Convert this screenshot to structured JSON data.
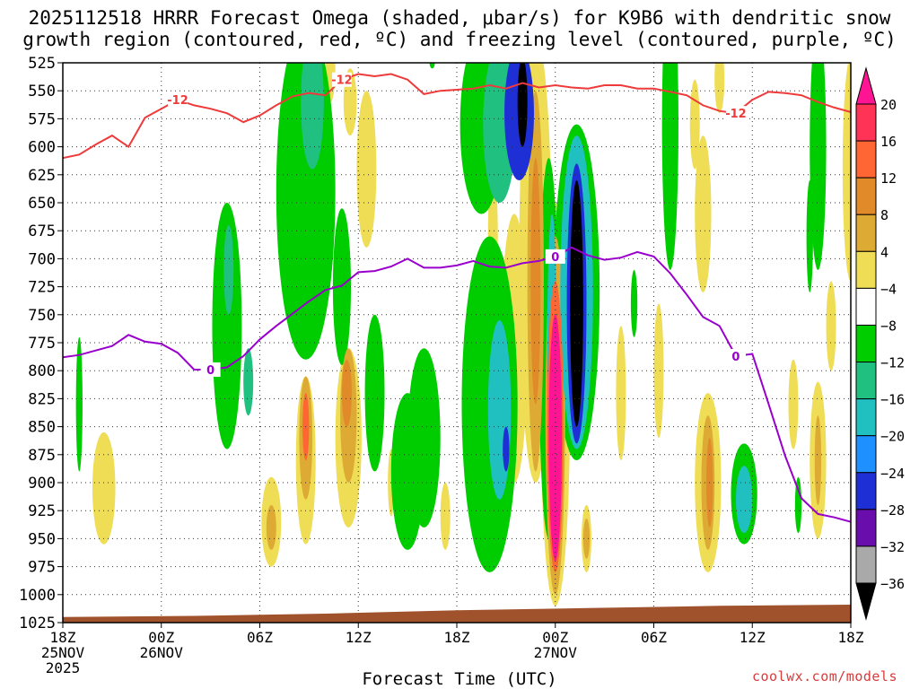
{
  "title": {
    "line1": "2025112518 HRRR Forecast Omega (shaded, μbar/s) for K9B6 with dendritic snow",
    "line2": "growth region (contoured, red, ºC) and freezing level (contoured, purple, ºC)"
  },
  "credit": "coolwx.com/models",
  "colors": {
    "ground": "#a0522d",
    "dgz_line": "#ee3a3a",
    "freezing_line": "#9900cc",
    "grid": "#999999",
    "colorbar": [
      "#000000",
      "#a9a9a9",
      "#9400d3",
      "#6a0dad",
      "#1f2fd6",
      "#1e90ff",
      "#20c0c0",
      "#20c080",
      "#00cd00",
      "#ffffff",
      "#eedd55",
      "#ddaa33",
      "#e08a2a",
      "#ff6633",
      "#ff3355"
    ],
    "pink_peak": "#ff1493"
  },
  "chart_data": {
    "type": "heatmap",
    "title": "2025112518 HRRR Forecast Omega (shaded, μbar/s) for K9B6 with dendritic snow growth region (contoured, red, ºC) and freezing level (contoured, purple, ºC)",
    "xlabel": "Forecast Time (UTC)",
    "ylabel": "",
    "x_ticks": [
      {
        "h": 0,
        "label": "18Z",
        "sub": "25NOV",
        "sub2": "2025"
      },
      {
        "h": 6,
        "label": "00Z",
        "sub": "26NOV"
      },
      {
        "h": 12,
        "label": "06Z"
      },
      {
        "h": 18,
        "label": "12Z"
      },
      {
        "h": 24,
        "label": "18Z"
      },
      {
        "h": 30,
        "label": "00Z",
        "sub": "27NOV"
      },
      {
        "h": 36,
        "label": "06Z"
      },
      {
        "h": 42,
        "label": "12Z"
      },
      {
        "h": 48,
        "label": "18Z"
      }
    ],
    "x_range": [
      0,
      48
    ],
    "y_levels": [
      525,
      550,
      575,
      600,
      625,
      650,
      675,
      700,
      725,
      750,
      775,
      800,
      825,
      850,
      875,
      900,
      925,
      950,
      975,
      1000,
      1025
    ],
    "y_range": [
      525,
      1025
    ],
    "grid": true,
    "colorbar": {
      "levels": [
        -36,
        -32,
        -28,
        -24,
        -20,
        -16,
        -12,
        -8,
        -4,
        4,
        8,
        12,
        16,
        20
      ],
      "labels": [
        "20",
        "16",
        "12",
        "8",
        "4",
        "−4",
        "−8",
        "−12",
        "−16",
        "−20",
        "−24",
        "−28",
        "−32",
        "−36"
      ]
    },
    "contour_labels": {
      "dgz": "-12",
      "freezing": "0"
    },
    "dgz_minus12": {
      "h": [
        0,
        1,
        2,
        3,
        4,
        5,
        6,
        7,
        8,
        9,
        10,
        11,
        12,
        13,
        14,
        15,
        16,
        17,
        18,
        19,
        20,
        21,
        22,
        23,
        24,
        25,
        26,
        27,
        28,
        29,
        30,
        31,
        32,
        33,
        34,
        35,
        36,
        37,
        38,
        39,
        40,
        41,
        42,
        43,
        44,
        45,
        46,
        47,
        48
      ],
      "hPa": [
        610,
        607,
        598,
        590,
        600,
        574,
        566,
        558,
        563,
        566,
        570,
        578,
        572,
        563,
        555,
        552,
        554,
        540,
        535,
        537,
        535,
        540,
        553,
        550,
        549,
        548,
        545,
        548,
        543,
        547,
        545,
        547,
        548,
        545,
        545,
        548,
        548,
        551,
        554,
        563,
        568,
        570,
        558,
        551,
        552,
        554,
        560,
        565,
        569
      ]
    },
    "freezing_0": {
      "h": [
        0,
        1,
        2,
        3,
        4,
        5,
        6,
        7,
        8,
        9,
        10,
        11,
        12,
        13,
        14,
        15,
        16,
        17,
        18,
        19,
        20,
        21,
        22,
        23,
        24,
        25,
        26,
        27,
        28,
        29,
        30,
        31,
        32,
        33,
        34,
        35,
        36,
        37,
        38,
        39,
        40,
        41,
        42,
        43,
        44,
        45,
        46,
        47,
        48
      ],
      "hPa": [
        788,
        786,
        782,
        778,
        768,
        774,
        776,
        784,
        799,
        799,
        797,
        787,
        772,
        760,
        749,
        738,
        728,
        724,
        712,
        711,
        707,
        700,
        708,
        708,
        706,
        702,
        707,
        708,
        704,
        702,
        698,
        690,
        697,
        701,
        699,
        694,
        698,
        713,
        732,
        752,
        760,
        787,
        785,
        830,
        876,
        914,
        928,
        931,
        935
      ]
    },
    "ground_hPa": [
      1020,
      1019,
      1017,
      1014,
      1012,
      1010,
      1009
    ],
    "omega_features": [
      {
        "h": 17.0,
        "p": 725,
        "rx": 0.55,
        "ry": 70,
        "val": -7
      },
      {
        "h": 14.8,
        "p": 640,
        "rx": 1.8,
        "ry": 150,
        "val": -7
      },
      {
        "h": 15.2,
        "p": 560,
        "rx": 0.7,
        "ry": 60,
        "val": -11
      },
      {
        "h": 10.0,
        "p": 760,
        "rx": 0.9,
        "ry": 110,
        "val": -6
      },
      {
        "h": 10.1,
        "p": 710,
        "rx": 0.3,
        "ry": 40,
        "val": -11
      },
      {
        "h": 11.3,
        "p": 810,
        "rx": 0.3,
        "ry": 30,
        "val": -10
      },
      {
        "h": 1.0,
        "p": 830,
        "rx": 0.2,
        "ry": 60,
        "val": -6
      },
      {
        "h": 19.0,
        "p": 820,
        "rx": 0.6,
        "ry": 70,
        "val": -6
      },
      {
        "h": 21.0,
        "p": 890,
        "rx": 1.0,
        "ry": 70,
        "val": -6
      },
      {
        "h": 22.0,
        "p": 860,
        "rx": 1.0,
        "ry": 80,
        "val": -6
      },
      {
        "h": 26.0,
        "p": 830,
        "rx": 1.7,
        "ry": 150,
        "val": -6
      },
      {
        "h": 26.6,
        "p": 835,
        "rx": 0.7,
        "ry": 80,
        "val": -12
      },
      {
        "h": 27.0,
        "p": 870,
        "rx": 0.2,
        "ry": 20,
        "val": -20
      },
      {
        "h": 25.5,
        "p": 580,
        "rx": 1.3,
        "ry": 80,
        "val": -6
      },
      {
        "h": 26.6,
        "p": 580,
        "rx": 1.0,
        "ry": 70,
        "val": -10
      },
      {
        "h": 27.8,
        "p": 570,
        "rx": 0.9,
        "ry": 60,
        "val": -22
      },
      {
        "h": 28.0,
        "p": 560,
        "rx": 0.3,
        "ry": 40,
        "val": -36
      },
      {
        "h": 29.6,
        "p": 780,
        "rx": 0.6,
        "ry": 170,
        "val": -6
      },
      {
        "h": 29.8,
        "p": 790,
        "rx": 0.3,
        "ry": 130,
        "val": -14
      },
      {
        "h": 31.3,
        "p": 730,
        "rx": 1.4,
        "ry": 150,
        "val": -6
      },
      {
        "h": 31.3,
        "p": 730,
        "rx": 1.0,
        "ry": 140,
        "val": -12
      },
      {
        "h": 31.3,
        "p": 740,
        "rx": 0.6,
        "ry": 125,
        "val": -20
      },
      {
        "h": 31.3,
        "p": 740,
        "rx": 0.4,
        "ry": 110,
        "val": -36
      },
      {
        "h": 34.8,
        "p": 740,
        "rx": 0.2,
        "ry": 30,
        "val": -6
      },
      {
        "h": 37.0,
        "p": 580,
        "rx": 0.5,
        "ry": 130,
        "val": -6
      },
      {
        "h": 41.5,
        "p": 910,
        "rx": 0.8,
        "ry": 45,
        "val": -6
      },
      {
        "h": 41.5,
        "p": 915,
        "rx": 0.5,
        "ry": 30,
        "val": -14
      },
      {
        "h": 46.0,
        "p": 600,
        "rx": 0.5,
        "ry": 110,
        "val": -6
      },
      {
        "h": 45.5,
        "p": 680,
        "rx": 0.2,
        "ry": 50,
        "val": -6
      },
      {
        "h": 44.8,
        "p": 920,
        "rx": 0.2,
        "ry": 25,
        "val": -6
      },
      {
        "h": 22.5,
        "p": 525,
        "rx": 0.1,
        "ry": 5,
        "val": -6
      },
      {
        "h": 2.5,
        "p": 905,
        "rx": 0.7,
        "ry": 50,
        "val": 5
      },
      {
        "h": 12.7,
        "p": 935,
        "rx": 0.6,
        "ry": 40,
        "val": 6
      },
      {
        "h": 12.7,
        "p": 940,
        "rx": 0.3,
        "ry": 20,
        "val": 9
      },
      {
        "h": 14.8,
        "p": 880,
        "rx": 0.6,
        "ry": 75,
        "val": 5
      },
      {
        "h": 14.8,
        "p": 860,
        "rx": 0.4,
        "ry": 55,
        "val": 10
      },
      {
        "h": 14.8,
        "p": 850,
        "rx": 0.2,
        "ry": 30,
        "val": 16
      },
      {
        "h": 17.4,
        "p": 860,
        "rx": 0.8,
        "ry": 80,
        "val": 5
      },
      {
        "h": 17.4,
        "p": 840,
        "rx": 0.5,
        "ry": 60,
        "val": 9
      },
      {
        "h": 17.3,
        "p": 820,
        "rx": 0.3,
        "ry": 30,
        "val": 13
      },
      {
        "h": 16.3,
        "p": 530,
        "rx": 0.3,
        "ry": 30,
        "val": 5
      },
      {
        "h": 18.5,
        "p": 620,
        "rx": 0.6,
        "ry": 70,
        "val": 5
      },
      {
        "h": 20.0,
        "p": 900,
        "rx": 0.2,
        "ry": 30,
        "val": 5
      },
      {
        "h": 23.3,
        "p": 930,
        "rx": 0.3,
        "ry": 30,
        "val": 5
      },
      {
        "h": 26.2,
        "p": 680,
        "rx": 0.3,
        "ry": 60,
        "val": 5
      },
      {
        "h": 27.5,
        "p": 780,
        "rx": 0.8,
        "ry": 120,
        "val": 5
      },
      {
        "h": 28.8,
        "p": 700,
        "rx": 1.0,
        "ry": 200,
        "val": 5
      },
      {
        "h": 28.8,
        "p": 720,
        "rx": 0.5,
        "ry": 170,
        "val": 8
      },
      {
        "h": 28.8,
        "p": 720,
        "rx": 0.3,
        "ry": 110,
        "val": 13
      },
      {
        "h": 30.0,
        "p": 830,
        "rx": 0.9,
        "ry": 180,
        "val": 5
      },
      {
        "h": 30.0,
        "p": 840,
        "rx": 0.6,
        "ry": 160,
        "val": 9
      },
      {
        "h": 30.0,
        "p": 850,
        "rx": 0.5,
        "ry": 130,
        "val": 16
      },
      {
        "h": 30.0,
        "p": 860,
        "rx": 0.4,
        "ry": 110,
        "val": 22
      },
      {
        "h": 31.9,
        "p": 950,
        "rx": 0.3,
        "ry": 30,
        "val": 5
      },
      {
        "h": 31.9,
        "p": 950,
        "rx": 0.2,
        "ry": 18,
        "val": 9
      },
      {
        "h": 34.0,
        "p": 820,
        "rx": 0.3,
        "ry": 60,
        "val": 5
      },
      {
        "h": 36.3,
        "p": 800,
        "rx": 0.3,
        "ry": 60,
        "val": 5
      },
      {
        "h": 38.5,
        "p": 580,
        "rx": 0.3,
        "ry": 40,
        "val": 5
      },
      {
        "h": 39.0,
        "p": 660,
        "rx": 0.5,
        "ry": 70,
        "val": 5
      },
      {
        "h": 39.3,
        "p": 900,
        "rx": 0.8,
        "ry": 80,
        "val": 5
      },
      {
        "h": 39.3,
        "p": 900,
        "rx": 0.4,
        "ry": 60,
        "val": 10
      },
      {
        "h": 39.4,
        "p": 900,
        "rx": 0.2,
        "ry": 40,
        "val": 13
      },
      {
        "h": 44.5,
        "p": 830,
        "rx": 0.3,
        "ry": 40,
        "val": 5
      },
      {
        "h": 46.0,
        "p": 880,
        "rx": 0.5,
        "ry": 70,
        "val": 5
      },
      {
        "h": 46.0,
        "p": 880,
        "rx": 0.2,
        "ry": 40,
        "val": 9
      },
      {
        "h": 46.8,
        "p": 760,
        "rx": 0.3,
        "ry": 40,
        "val": 5
      },
      {
        "h": 48.0,
        "p": 620,
        "rx": 0.5,
        "ry": 100,
        "val": 5
      },
      {
        "h": 17.5,
        "p": 560,
        "rx": 0.4,
        "ry": 30,
        "val": 5
      },
      {
        "h": 40.0,
        "p": 540,
        "rx": 0.3,
        "ry": 30,
        "val": 5
      }
    ]
  }
}
